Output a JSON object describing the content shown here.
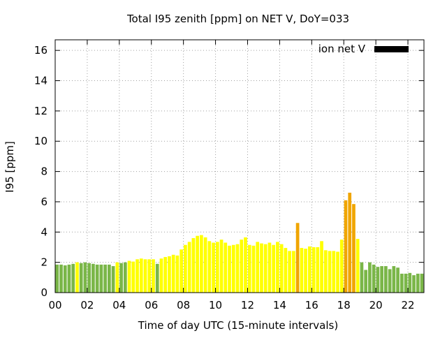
{
  "chart_data": {
    "type": "bar",
    "title": "Total I95 zenith [ppm] on NET V, DoY=033",
    "xlabel": "Time of day UTC (15-minute intervals)",
    "ylabel": "I95 [ppm]",
    "xlim": [
      0,
      23
    ],
    "ylim": [
      0,
      16.7
    ],
    "xticks": [
      0,
      2,
      4,
      6,
      8,
      10,
      12,
      14,
      16,
      18,
      20,
      22
    ],
    "xtick_labels": [
      "00",
      "02",
      "04",
      "06",
      "08",
      "10",
      "12",
      "14",
      "16",
      "18",
      "20",
      "22"
    ],
    "yticks": [
      0,
      2,
      4,
      6,
      8,
      10,
      12,
      14,
      16
    ],
    "ytick_labels": [
      "0",
      "2",
      "4",
      "6",
      "8",
      "10",
      "12",
      "14",
      "16"
    ],
    "grid": true,
    "legend": {
      "label": "ion net V",
      "color": "#000000",
      "placement": "top-right"
    },
    "interval_hours": 0.25,
    "colors": {
      "green": "#7ab648",
      "yellow": "#ffff00",
      "orange": "#f0a500"
    },
    "series": [
      {
        "values": [
          1.85,
          1.85,
          1.8,
          1.85,
          1.9,
          2.0,
          1.95,
          2.0,
          1.95,
          1.9,
          1.85,
          1.85,
          1.85,
          1.85,
          1.75,
          2.0,
          1.95,
          2.0,
          2.1,
          2.05,
          2.2,
          2.25,
          2.2,
          2.2,
          2.2,
          1.9,
          2.25,
          2.35,
          2.4,
          2.5,
          2.45,
          2.85,
          3.15,
          3.35,
          3.6,
          3.75,
          3.8,
          3.65,
          3.4,
          3.3,
          3.35,
          3.5,
          3.3,
          3.1,
          3.15,
          3.2,
          3.5,
          3.65,
          3.15,
          3.1,
          3.35,
          3.25,
          3.2,
          3.3,
          3.15,
          3.35,
          3.2,
          2.95,
          2.75,
          2.75,
          4.6,
          2.95,
          2.9,
          3.05,
          3.0,
          3.0,
          3.4,
          2.8,
          2.75,
          2.75,
          2.7,
          3.5,
          6.1,
          6.6,
          5.85,
          3.55,
          2.0,
          1.5,
          2.0,
          1.85,
          1.7,
          1.75,
          1.75,
          1.55,
          1.75,
          1.65,
          1.25,
          1.25,
          1.3,
          1.15,
          1.25,
          1.25
        ],
        "colors": [
          "green",
          "green",
          "green",
          "green",
          "green",
          "yellow",
          "green",
          "green",
          "green",
          "green",
          "green",
          "green",
          "green",
          "green",
          "green",
          "yellow",
          "green",
          "green",
          "yellow",
          "yellow",
          "yellow",
          "yellow",
          "yellow",
          "yellow",
          "yellow",
          "green",
          "yellow",
          "yellow",
          "yellow",
          "yellow",
          "yellow",
          "yellow",
          "yellow",
          "yellow",
          "yellow",
          "yellow",
          "yellow",
          "yellow",
          "yellow",
          "yellow",
          "yellow",
          "yellow",
          "yellow",
          "yellow",
          "yellow",
          "yellow",
          "yellow",
          "yellow",
          "yellow",
          "yellow",
          "yellow",
          "yellow",
          "yellow",
          "yellow",
          "yellow",
          "yellow",
          "yellow",
          "yellow",
          "yellow",
          "yellow",
          "orange",
          "yellow",
          "yellow",
          "yellow",
          "yellow",
          "yellow",
          "yellow",
          "yellow",
          "yellow",
          "yellow",
          "yellow",
          "yellow",
          "orange",
          "orange",
          "orange",
          "yellow",
          "green",
          "green",
          "green",
          "green",
          "green",
          "green",
          "green",
          "green",
          "green",
          "green",
          "green",
          "green",
          "green",
          "green",
          "green",
          "green"
        ]
      }
    ]
  }
}
